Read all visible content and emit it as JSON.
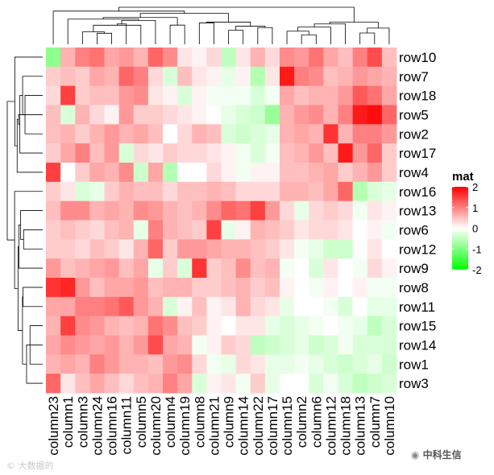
{
  "chart_data": {
    "type": "heatmap",
    "title": "",
    "legend": {
      "title": "mat",
      "ticks": [
        2,
        1,
        0,
        -1,
        -2
      ],
      "range": [
        -2,
        2
      ],
      "colors": {
        "low": "#00ff00",
        "mid": "#ffffff",
        "high": "#ff0000"
      }
    },
    "rows": [
      "row10",
      "row7",
      "row18",
      "row5",
      "row2",
      "row17",
      "row4",
      "row16",
      "row13",
      "row6",
      "row12",
      "row9",
      "row8",
      "row11",
      "row15",
      "row14",
      "row1",
      "row3"
    ],
    "columns": [
      "column23",
      "column1",
      "column3",
      "column24",
      "column16",
      "column11",
      "column5",
      "column20",
      "column4",
      "column19",
      "column8",
      "column21",
      "column9",
      "column14",
      "column22",
      "column17",
      "column15",
      "column2",
      "column6",
      "column12",
      "column18",
      "column13",
      "column7",
      "column10"
    ],
    "values": [
      [
        -0.9,
        0.6,
        1.0,
        1.1,
        0.7,
        0.8,
        0.6,
        1.2,
        0.9,
        0.2,
        0.1,
        0.3,
        -0.5,
        0.2,
        0.6,
        0.3,
        0.9,
        0.8,
        1.1,
        0.7,
        0.5,
        1.0,
        1.4,
        0.5
      ],
      [
        0.4,
        0.5,
        0.4,
        0.7,
        0.6,
        1.2,
        1.0,
        0.3,
        -0.3,
        0.5,
        0.2,
        0.1,
        -0.2,
        0.1,
        -0.6,
        0.2,
        1.8,
        1.0,
        0.9,
        0.5,
        0.6,
        0.8,
        0.7,
        0.6
      ],
      [
        0.3,
        1.5,
        0.4,
        0.5,
        0.5,
        0.8,
        0.9,
        0.2,
        0.1,
        -0.3,
        0.1,
        -0.1,
        -0.1,
        -0.1,
        -0.3,
        -0.1,
        0.7,
        0.5,
        0.6,
        0.6,
        0.8,
        1.3,
        1.1,
        0.7
      ],
      [
        0.5,
        -0.3,
        0.6,
        0.3,
        0.1,
        0.8,
        0.4,
        0.4,
        0.3,
        0.2,
        0.1,
        0.0,
        -0.2,
        -0.3,
        -0.4,
        -0.8,
        0.6,
        0.8,
        0.9,
        0.6,
        1.0,
        1.8,
        1.9,
        1.2
      ],
      [
        0.5,
        0.6,
        0.4,
        0.6,
        0.8,
        0.6,
        0.7,
        0.5,
        0.0,
        0.3,
        0.6,
        0.5,
        -0.3,
        -0.4,
        -0.3,
        -0.2,
        0.6,
        0.7,
        0.6,
        1.6,
        0.6,
        1.0,
        1.0,
        0.8
      ],
      [
        0.4,
        0.7,
        1.0,
        0.5,
        0.8,
        -0.3,
        0.3,
        0.2,
        0.4,
        0.3,
        0.3,
        0.2,
        0.1,
        -0.1,
        -0.3,
        -0.1,
        0.5,
        0.6,
        0.8,
        0.5,
        1.8,
        0.8,
        1.2,
        0.4
      ],
      [
        1.5,
        0.0,
        0.4,
        0.7,
        0.6,
        0.9,
        -0.4,
        0.7,
        -0.6,
        0.0,
        0.0,
        0.3,
        0.1,
        -0.1,
        0.1,
        0.1,
        0.5,
        0.5,
        0.6,
        0.7,
        0.4,
        0.6,
        0.8,
        0.4
      ],
      [
        0.4,
        0.2,
        -0.3,
        -0.2,
        0.4,
        0.6,
        0.5,
        0.5,
        0.3,
        0.5,
        0.5,
        0.6,
        0.5,
        0.3,
        0.3,
        0.3,
        0.6,
        0.6,
        0.5,
        0.7,
        1.2,
        -0.6,
        -0.3,
        -0.2
      ],
      [
        0.5,
        0.9,
        0.9,
        0.6,
        0.7,
        0.6,
        0.9,
        0.8,
        0.6,
        0.5,
        0.6,
        0.9,
        1.2,
        1.1,
        1.5,
        0.8,
        0.3,
        -0.2,
        0.3,
        0.4,
        0.3,
        -0.1,
        0.2,
        0.1
      ],
      [
        0.4,
        0.5,
        0.4,
        0.3,
        0.5,
        0.6,
        -0.2,
        1.0,
        0.6,
        0.5,
        0.4,
        1.5,
        -0.2,
        0.1,
        0.6,
        0.5,
        0.4,
        0.2,
        0.3,
        0.3,
        0.2,
        0.0,
        0.1,
        -0.1
      ],
      [
        0.4,
        0.4,
        0.3,
        0.5,
        0.4,
        0.2,
        0.6,
        1.2,
        0.4,
        0.8,
        0.8,
        0.7,
        0.6,
        0.6,
        0.5,
        0.4,
        0.2,
        -0.1,
        -0.2,
        -0.4,
        -0.4,
        0.0,
        0.2,
        0.0
      ],
      [
        0.8,
        0.5,
        0.6,
        0.7,
        0.8,
        0.5,
        0.7,
        -0.2,
        0.4,
        -0.3,
        1.6,
        0.4,
        0.5,
        0.9,
        0.5,
        0.6,
        -0.1,
        0.0,
        -0.3,
        0.2,
        0.0,
        -0.1,
        0.3,
        0.1
      ],
      [
        1.6,
        1.7,
        0.8,
        0.5,
        0.7,
        0.7,
        0.8,
        0.5,
        0.6,
        0.6,
        0.4,
        0.4,
        0.5,
        0.6,
        0.4,
        0.5,
        0.1,
        0.0,
        -0.1,
        0.1,
        0.0,
        0.1,
        -0.1,
        -0.1
      ],
      [
        0.7,
        0.7,
        1.0,
        1.0,
        1.1,
        1.3,
        0.8,
        0.6,
        -0.3,
        0.1,
        0.5,
        0.1,
        0.2,
        0.6,
        0.3,
        0.2,
        -0.2,
        0.0,
        0.0,
        -0.1,
        -0.3,
        0.0,
        -0.2,
        -0.2
      ],
      [
        0.6,
        1.5,
        0.9,
        0.8,
        0.6,
        0.5,
        0.6,
        1.1,
        0.9,
        0.5,
        0.4,
        0.1,
        0.0,
        0.2,
        0.2,
        -0.2,
        -0.3,
        -0.2,
        -0.1,
        0.0,
        -0.1,
        -0.2,
        -0.5,
        -0.3
      ],
      [
        0.7,
        0.9,
        0.8,
        0.7,
        0.8,
        0.6,
        0.8,
        1.4,
        0.7,
        0.6,
        -0.1,
        0.1,
        0.4,
        0.3,
        -0.5,
        -0.4,
        -0.3,
        -0.2,
        -0.4,
        -0.3,
        -0.1,
        -0.3,
        -0.3,
        -0.3
      ],
      [
        0.6,
        0.7,
        0.6,
        1.0,
        0.8,
        0.6,
        0.6,
        0.5,
        0.8,
        0.9,
        0.3,
        -0.1,
        -0.2,
        0.3,
        0.2,
        -0.2,
        -0.2,
        -0.1,
        -0.2,
        -0.3,
        -0.4,
        -0.3,
        -0.2,
        -0.4
      ],
      [
        1.2,
        0.2,
        0.5,
        0.7,
        0.5,
        0.3,
        0.5,
        0.6,
        1.0,
        0.7,
        -0.3,
        0.1,
        0.2,
        -0.1,
        0.4,
        -0.2,
        0.0,
        0.0,
        -0.3,
        -0.1,
        -0.3,
        -0.5,
        -0.4,
        -0.3
      ]
    ],
    "row_dendrogram": true,
    "column_dendrogram": true
  },
  "watermarks": {
    "left": "大数据的",
    "right": "中科生信"
  }
}
